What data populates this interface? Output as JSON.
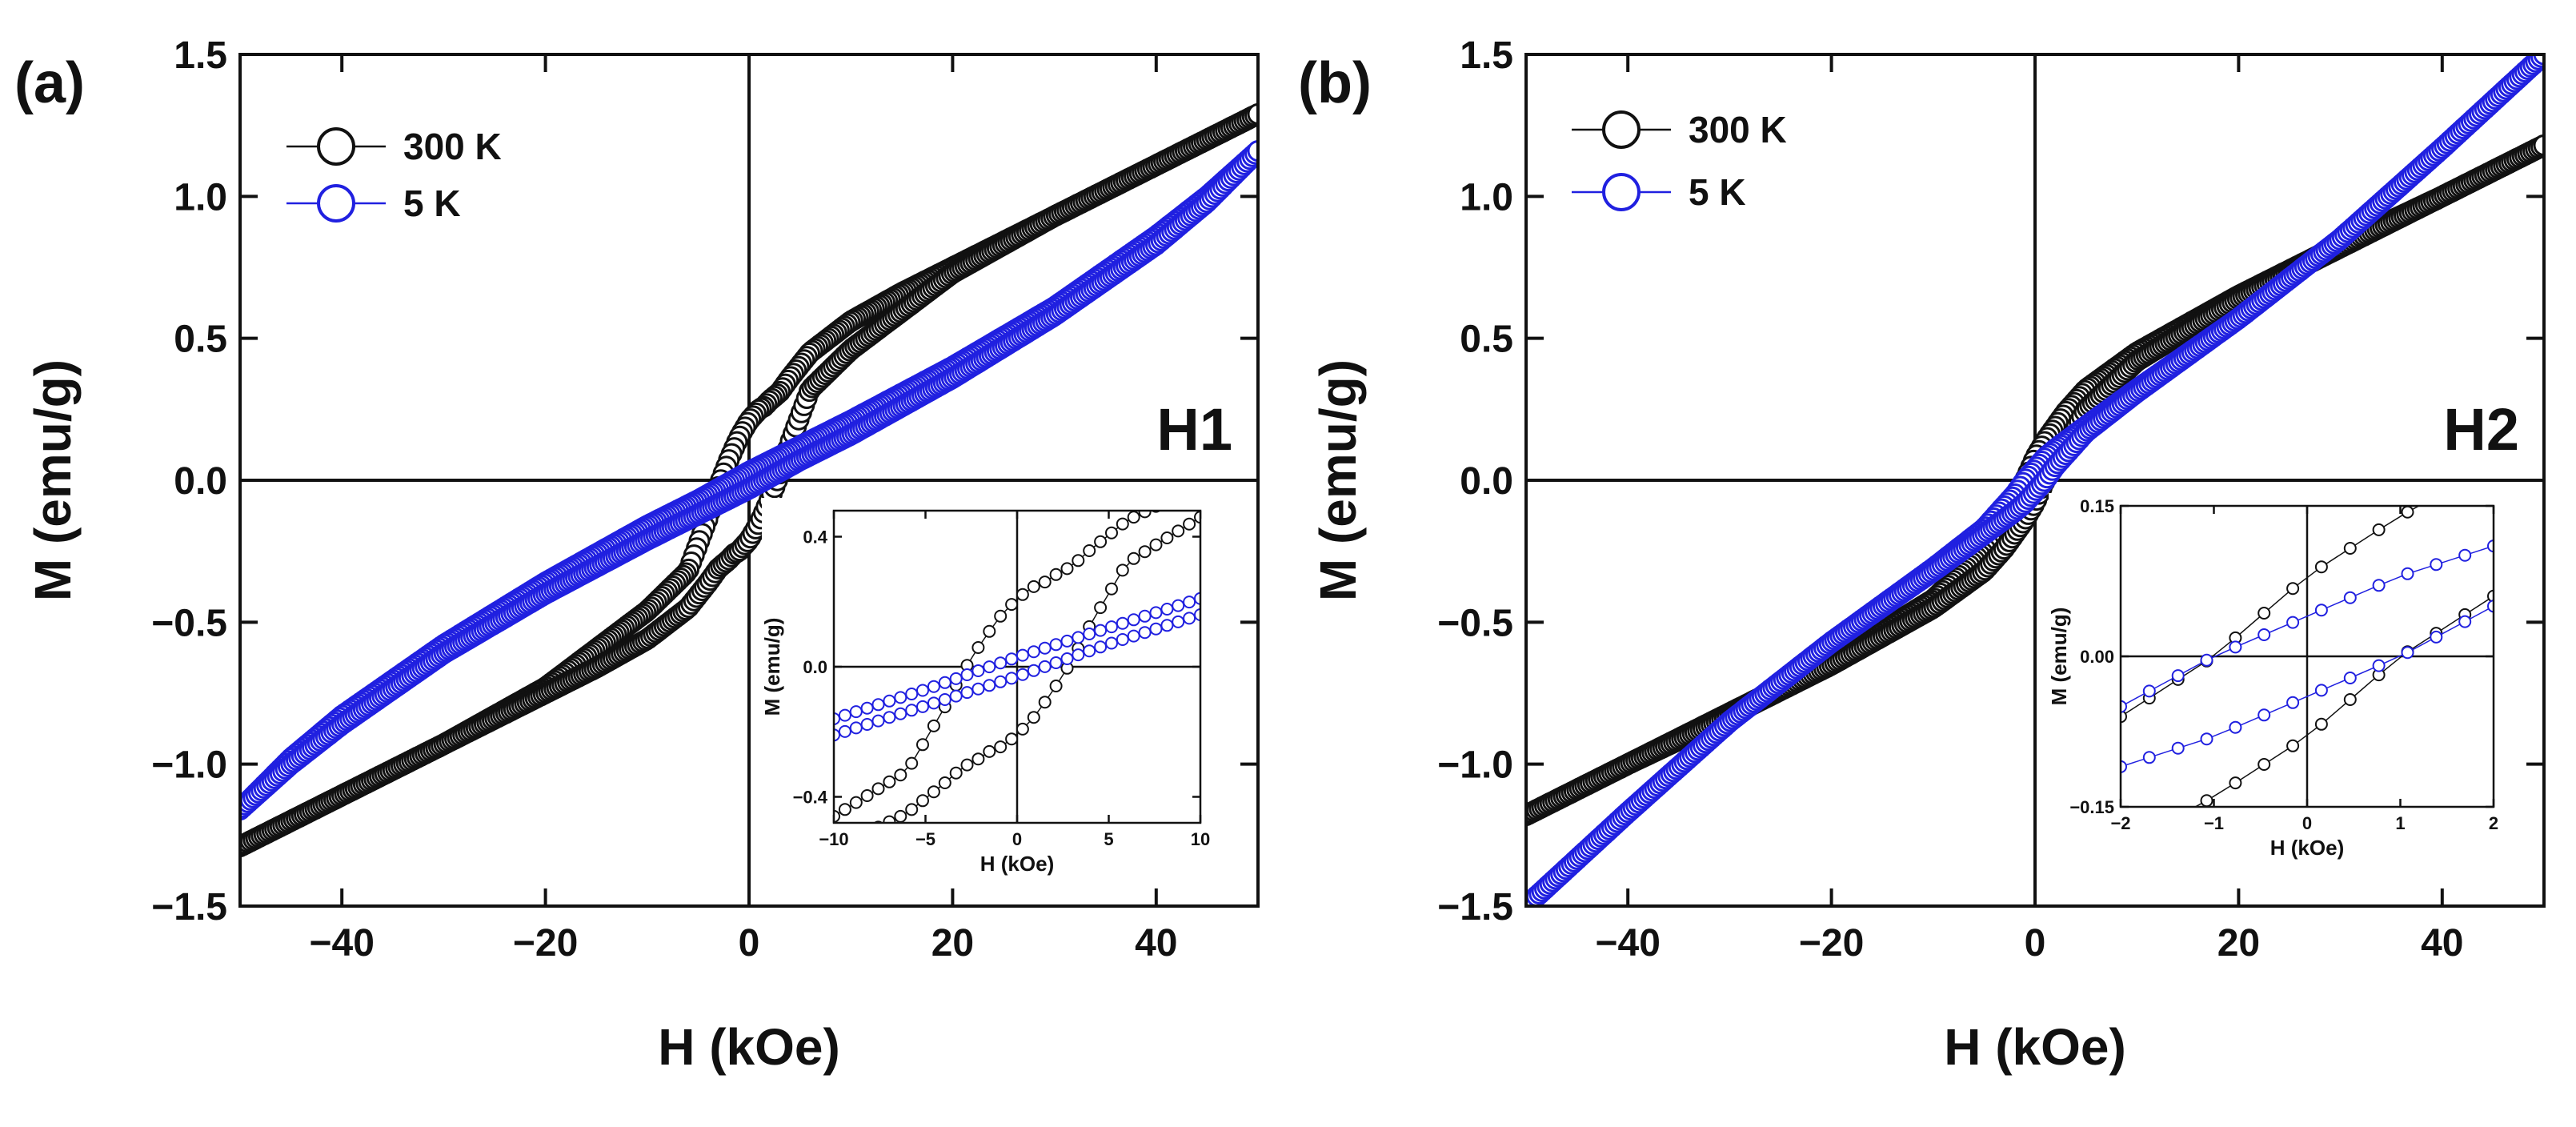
{
  "chart_data": [
    {
      "type": "line",
      "panel_label": "(a)",
      "sample_label": "H1",
      "xlabel": "H (kOe)",
      "ylabel": "M (emu/g)",
      "xlim": [
        -50,
        50
      ],
      "ylim": [
        -1.5,
        1.5
      ],
      "xticks": [
        -40,
        -20,
        0,
        20,
        40
      ],
      "xtick_labels": [
        "−40",
        "−20",
        "0",
        "20",
        "40"
      ],
      "yticks": [
        -1.5,
        -1.0,
        -0.5,
        0.0,
        0.5,
        1.0,
        1.5
      ],
      "ytick_labels": [
        "−1.5",
        "−1.0",
        "−0.5",
        "0.0",
        "0.5",
        "1.0",
        "1.5"
      ],
      "legend_position": "top-left",
      "series": [
        {
          "name": "300 K",
          "color": "#111111",
          "marker": "open-circle",
          "branches": [
            {
              "x": [
                50,
                40,
                30,
                20,
                15,
                10,
                6,
                4,
                3,
                2,
                1.5,
                1,
                0,
                -1,
                -2,
                -3,
                -4,
                -6,
                -10,
                -20,
                -30,
                -40,
                -50
              ],
              "y": [
                1.29,
                1.11,
                0.93,
                0.75,
                0.66,
                0.56,
                0.45,
                0.36,
                0.31,
                0.28,
                0.26,
                0.25,
                0.21,
                0.15,
                0.07,
                -0.02,
                -0.13,
                -0.32,
                -0.46,
                -0.73,
                -0.93,
                -1.11,
                -1.29
              ]
            },
            {
              "x": [
                -50,
                -40,
                -30,
                -20,
                -15,
                -10,
                -6,
                -4,
                -3,
                -2,
                -1.5,
                -1,
                0,
                1,
                2,
                3,
                4,
                6,
                10,
                20,
                30,
                40,
                50
              ],
              "y": [
                -1.29,
                -1.11,
                -0.93,
                -0.75,
                -0.66,
                -0.56,
                -0.45,
                -0.36,
                -0.31,
                -0.28,
                -0.26,
                -0.25,
                -0.21,
                -0.15,
                -0.07,
                0.02,
                0.13,
                0.32,
                0.46,
                0.73,
                0.93,
                1.11,
                1.29
              ]
            }
          ]
        },
        {
          "name": "5 K",
          "color": "#2020e0",
          "marker": "open-circle",
          "branches": [
            {
              "x": [
                50,
                45,
                40,
                30,
                20,
                10,
                5,
                0,
                -5,
                -10,
                -20,
                -30,
                -40,
                -45,
                -50
              ],
              "y": [
                1.16,
                1.0,
                0.86,
                0.61,
                0.4,
                0.21,
                0.12,
                0.03,
                -0.07,
                -0.16,
                -0.36,
                -0.58,
                -0.83,
                -0.98,
                -1.16
              ]
            },
            {
              "x": [
                -50,
                -45,
                -40,
                -30,
                -20,
                -10,
                -5,
                0,
                5,
                10,
                20,
                30,
                40,
                45,
                50
              ],
              "y": [
                -1.16,
                -1.0,
                -0.86,
                -0.61,
                -0.4,
                -0.21,
                -0.12,
                -0.03,
                0.07,
                0.16,
                0.36,
                0.58,
                0.83,
                0.98,
                1.16
              ]
            }
          ]
        }
      ],
      "inset": {
        "xlabel": "H (kOe)",
        "ylabel": "M (emu/g)",
        "xlim": [
          -10,
          10
        ],
        "ylim": [
          -0.48,
          0.48
        ],
        "xticks": [
          -10,
          -5,
          0,
          5,
          10
        ],
        "xtick_labels": [
          "−10",
          "−5",
          "0",
          "5",
          "10"
        ],
        "yticks": [
          -0.4,
          0.0,
          0.4
        ],
        "ytick_labels": [
          "−0.4",
          "0.0",
          "0.4"
        ]
      }
    },
    {
      "type": "line",
      "panel_label": "(b)",
      "sample_label": "H2",
      "xlabel": "H (kOe)",
      "ylabel": "M (emu/g)",
      "xlim": [
        -50,
        50
      ],
      "ylim": [
        -1.5,
        1.5
      ],
      "xticks": [
        -40,
        -20,
        0,
        20,
        40
      ],
      "xtick_labels": [
        "−40",
        "−20",
        "0",
        "20",
        "40"
      ],
      "yticks": [
        -1.5,
        -1.0,
        -0.5,
        0.0,
        0.5,
        1.0,
        1.5
      ],
      "ytick_labels": [
        "−1.5",
        "−1.0",
        "−0.5",
        "0.0",
        "0.5",
        "1.0",
        "1.5"
      ],
      "legend_position": "top-left",
      "series": [
        {
          "name": "300 K",
          "color": "#111111",
          "marker": "open-circle",
          "branches": [
            {
              "x": [
                50,
                40,
                30,
                20,
                10,
                5,
                3,
                2,
                1,
                0,
                -0.5,
                -1,
                -2,
                -3,
                -5,
                -10,
                -20,
                -30,
                -40,
                -50
              ],
              "y": [
                1.18,
                1.0,
                0.83,
                0.65,
                0.45,
                0.32,
                0.24,
                0.19,
                0.14,
                0.08,
                0.04,
                0.0,
                -0.06,
                -0.12,
                -0.25,
                -0.42,
                -0.64,
                -0.82,
                -1.0,
                -1.18
              ]
            },
            {
              "x": [
                -50,
                -40,
                -30,
                -20,
                -10,
                -5,
                -3,
                -2,
                -1,
                0,
                0.5,
                1,
                2,
                3,
                5,
                10,
                20,
                30,
                40,
                50
              ],
              "y": [
                -1.18,
                -1.0,
                -0.83,
                -0.65,
                -0.45,
                -0.32,
                -0.24,
                -0.19,
                -0.14,
                -0.08,
                -0.04,
                0.0,
                0.06,
                0.12,
                0.25,
                0.42,
                0.64,
                0.82,
                1.0,
                1.18
              ]
            }
          ]
        },
        {
          "name": "5 K",
          "color": "#2020e0",
          "marker": "open-circle",
          "branches": [
            {
              "x": [
                50,
                40,
                30,
                20,
                10,
                5,
                2,
                1,
                0,
                -0.5,
                -1,
                -2,
                -5,
                -10,
                -20,
                -30,
                -40,
                -50
              ],
              "y": [
                1.5,
                1.17,
                0.85,
                0.57,
                0.32,
                0.19,
                0.11,
                0.08,
                0.04,
                0.02,
                0.0,
                -0.05,
                -0.17,
                -0.31,
                -0.57,
                -0.85,
                -1.17,
                -1.5
              ]
            },
            {
              "x": [
                -50,
                -40,
                -30,
                -20,
                -10,
                -5,
                -2,
                -1,
                0,
                0.5,
                1,
                2,
                5,
                10,
                20,
                30,
                40,
                50
              ],
              "y": [
                -1.5,
                -1.17,
                -0.85,
                -0.57,
                -0.32,
                -0.19,
                -0.11,
                -0.08,
                -0.04,
                -0.02,
                0.0,
                0.05,
                0.17,
                0.31,
                0.57,
                0.85,
                1.17,
                1.5
              ]
            }
          ]
        }
      ],
      "inset": {
        "xlabel": "H (kOe)",
        "ylabel": "M (emu/g)",
        "xlim": [
          -2,
          2
        ],
        "ylim": [
          -0.15,
          0.15
        ],
        "xticks": [
          -2,
          -1,
          0,
          1,
          2
        ],
        "xtick_labels": [
          "−2",
          "−1",
          "0",
          "1",
          "2"
        ],
        "yticks": [
          -0.15,
          0.0,
          0.15
        ],
        "ytick_labels": [
          "−0.15",
          "0.00",
          "0.15"
        ]
      }
    }
  ]
}
